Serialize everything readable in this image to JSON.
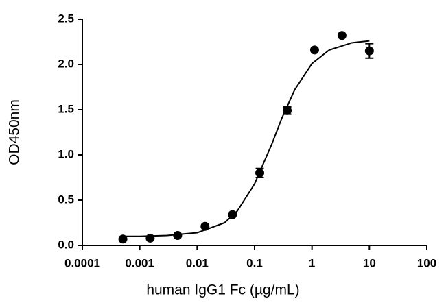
{
  "chart_data": {
    "type": "scatter",
    "xlabel": "human IgG1 Fc (µg/mL)",
    "ylabel": "OD450nm",
    "xscale": "log",
    "xlim": [
      0.0001,
      100
    ],
    "xticks": [
      0.0001,
      0.001,
      0.01,
      0.1,
      1,
      10,
      100
    ],
    "ylim": [
      0,
      2.5
    ],
    "yticks": [
      {
        "value": 0,
        "label": "0.0"
      },
      0.5,
      {
        "value": 1,
        "label": "1.0"
      },
      1.5,
      {
        "value": 2,
        "label": "2.0"
      },
      2.5
    ],
    "color": "#000000",
    "points": {
      "x": [
        0.000508,
        0.00152,
        0.00457,
        0.0137,
        0.0412,
        0.123,
        0.37,
        1.11,
        3.33,
        10
      ],
      "values": [
        0.07,
        0.08,
        0.11,
        0.21,
        0.34,
        0.8,
        1.49,
        2.16,
        2.32,
        2.15
      ],
      "errors": [
        null,
        null,
        null,
        null,
        null,
        0.05,
        0.04,
        null,
        null,
        0.08
      ]
    },
    "fit": {
      "x": [
        0.0005,
        0.001,
        0.003,
        0.01,
        0.03,
        0.05,
        0.1,
        0.2,
        0.3,
        0.5,
        1,
        2,
        5,
        10
      ],
      "values": [
        0.1,
        0.1,
        0.11,
        0.14,
        0.25,
        0.38,
        0.68,
        1.12,
        1.41,
        1.72,
        2.01,
        2.16,
        2.24,
        2.26
      ]
    }
  }
}
